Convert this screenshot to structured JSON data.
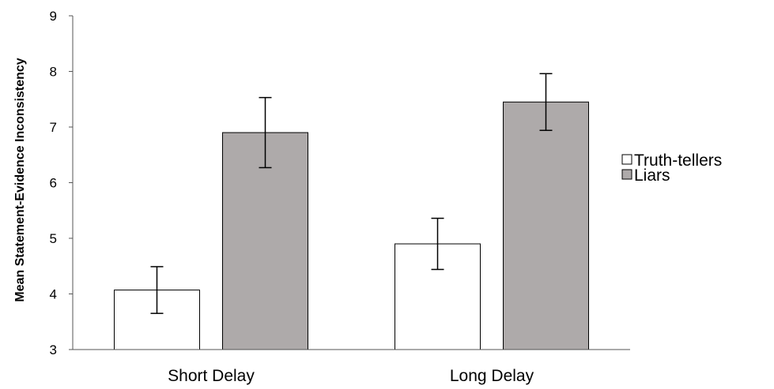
{
  "chart_data": {
    "type": "bar",
    "title": "",
    "xlabel": "",
    "ylabel": "Mean Statement-Evidence Inconsistency",
    "ylim": [
      3,
      9
    ],
    "yticks": [
      "3",
      "4",
      "5",
      "6",
      "7",
      "8",
      "9"
    ],
    "categories": [
      "Short Delay",
      "Long Delay"
    ],
    "series": [
      {
        "name": "Truth-tellers",
        "color": "#ffffff",
        "values": [
          4.07,
          4.9
        ],
        "error": [
          0.42,
          0.46
        ]
      },
      {
        "name": "Liars",
        "color": "#aeaaaa",
        "values": [
          6.9,
          7.45
        ],
        "error": [
          0.63,
          0.51
        ]
      }
    ],
    "grid": false,
    "legend_position": "right"
  }
}
